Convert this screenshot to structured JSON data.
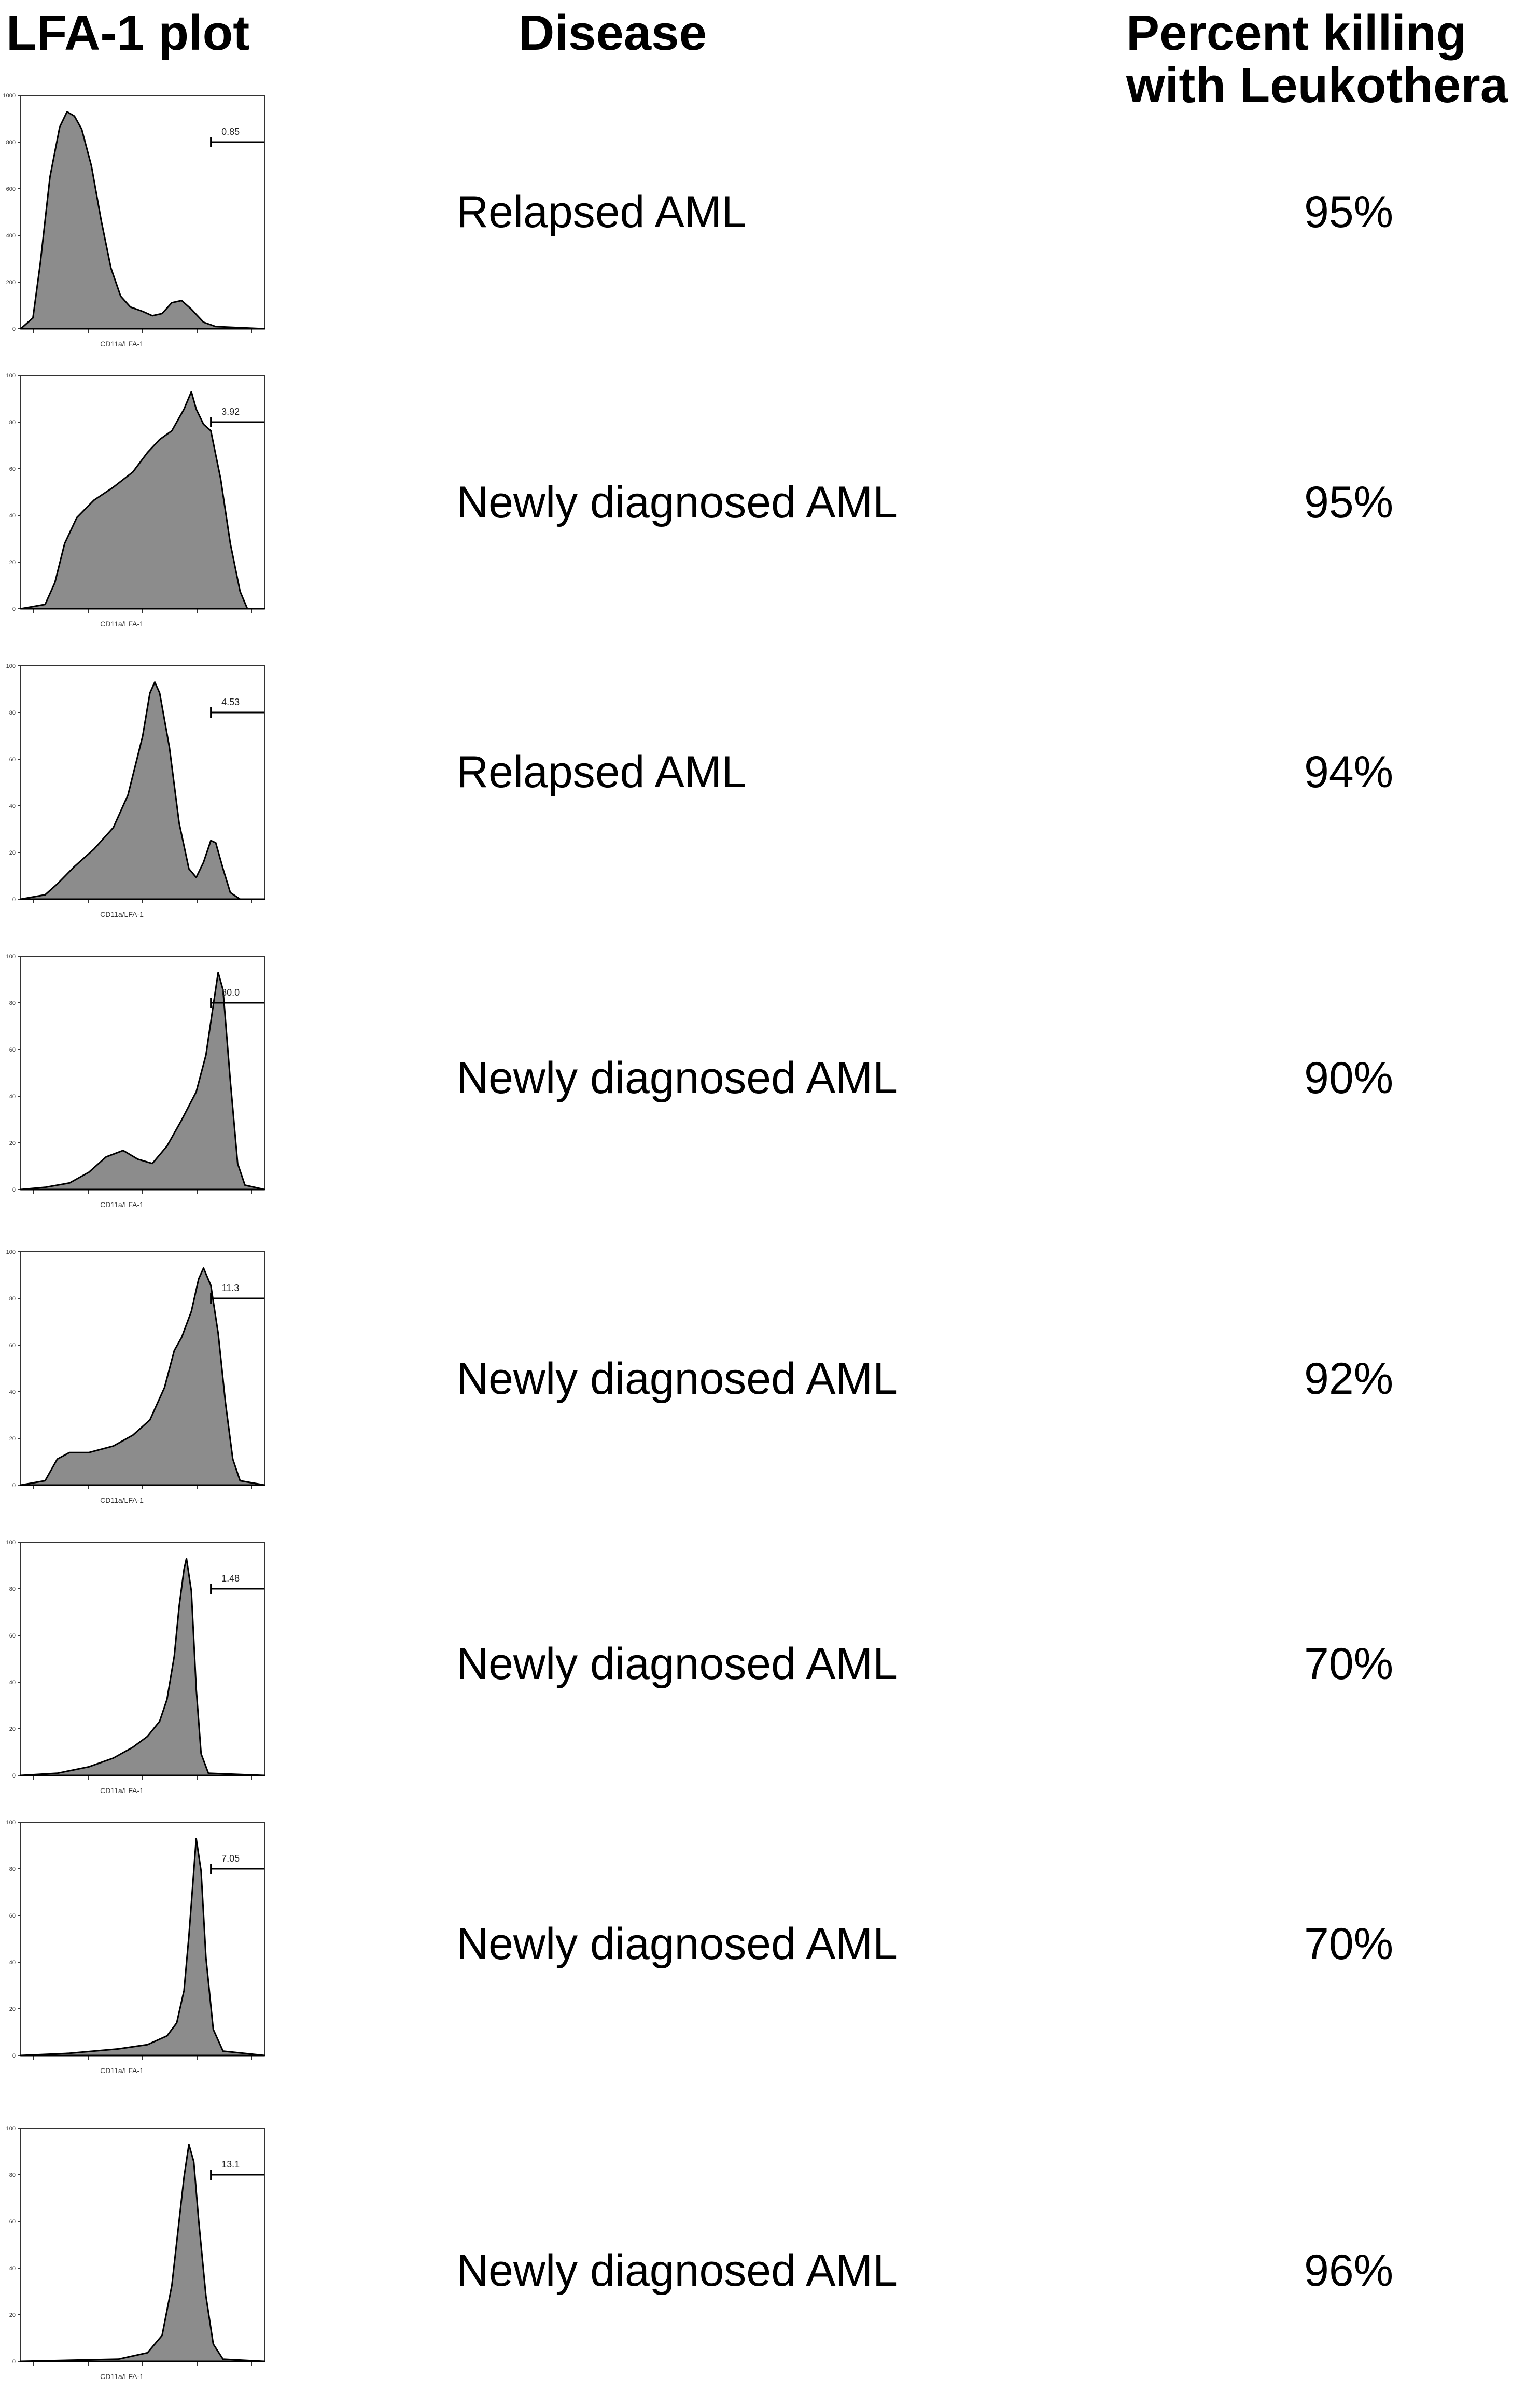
{
  "headers": {
    "plot": "LFA-1 plot",
    "disease": "Disease",
    "kill_line1": "Percent killing",
    "kill_line2": "with  Leukothera"
  },
  "colors": {
    "fill": "#8c8c8c",
    "stroke": "#000000"
  },
  "chart_data": {
    "type": "table",
    "columns": [
      "LFA-1 plot",
      "Disease",
      "Percent killing with Leukothera"
    ],
    "rows": [
      {
        "disease": "Relapsed AML",
        "killing": "95%",
        "gate_value": "0.85",
        "axis_label": "CD11a/LFA-1",
        "y_ticks": [
          "0",
          "200",
          "400",
          "600",
          "800",
          "1000"
        ],
        "histogram": [
          [
            0,
            0
          ],
          [
            0.05,
            0.05
          ],
          [
            0.08,
            0.3
          ],
          [
            0.12,
            0.7
          ],
          [
            0.16,
            0.93
          ],
          [
            0.19,
            1.0
          ],
          [
            0.22,
            0.98
          ],
          [
            0.25,
            0.92
          ],
          [
            0.29,
            0.75
          ],
          [
            0.33,
            0.5
          ],
          [
            0.37,
            0.28
          ],
          [
            0.41,
            0.15
          ],
          [
            0.45,
            0.1
          ],
          [
            0.5,
            0.08
          ],
          [
            0.54,
            0.06
          ],
          [
            0.58,
            0.07
          ],
          [
            0.62,
            0.12
          ],
          [
            0.66,
            0.13
          ],
          [
            0.7,
            0.09
          ],
          [
            0.75,
            0.03
          ],
          [
            0.8,
            0.01
          ],
          [
            1,
            0
          ]
        ]
      },
      {
        "disease": "Newly diagnosed AML",
        "killing": "95%",
        "gate_value": "3.92",
        "axis_label": "CD11a/LFA-1",
        "y_ticks": [
          "0",
          "20",
          "40",
          "60",
          "80",
          "100"
        ],
        "histogram": [
          [
            0,
            0
          ],
          [
            0.1,
            0.02
          ],
          [
            0.14,
            0.12
          ],
          [
            0.18,
            0.3
          ],
          [
            0.23,
            0.42
          ],
          [
            0.3,
            0.5
          ],
          [
            0.38,
            0.56
          ],
          [
            0.46,
            0.63
          ],
          [
            0.52,
            0.72
          ],
          [
            0.57,
            0.78
          ],
          [
            0.62,
            0.82
          ],
          [
            0.67,
            0.92
          ],
          [
            0.7,
            1.0
          ],
          [
            0.72,
            0.92
          ],
          [
            0.75,
            0.85
          ],
          [
            0.78,
            0.82
          ],
          [
            0.82,
            0.6
          ],
          [
            0.86,
            0.3
          ],
          [
            0.9,
            0.08
          ],
          [
            0.93,
            0
          ],
          [
            1,
            0
          ]
        ]
      },
      {
        "disease": "Relapsed AML",
        "killing": "94%",
        "gate_value": "4.53",
        "axis_label": "CD11a/LFA-1",
        "y_ticks": [
          "0",
          "20",
          "40",
          "60",
          "80",
          "100"
        ],
        "histogram": [
          [
            0,
            0
          ],
          [
            0.1,
            0.02
          ],
          [
            0.15,
            0.07
          ],
          [
            0.22,
            0.15
          ],
          [
            0.3,
            0.23
          ],
          [
            0.38,
            0.33
          ],
          [
            0.44,
            0.48
          ],
          [
            0.5,
            0.75
          ],
          [
            0.53,
            0.95
          ],
          [
            0.55,
            1.0
          ],
          [
            0.57,
            0.95
          ],
          [
            0.61,
            0.7
          ],
          [
            0.65,
            0.35
          ],
          [
            0.69,
            0.14
          ],
          [
            0.72,
            0.1
          ],
          [
            0.75,
            0.17
          ],
          [
            0.78,
            0.27
          ],
          [
            0.8,
            0.26
          ],
          [
            0.83,
            0.14
          ],
          [
            0.86,
            0.03
          ],
          [
            0.9,
            0
          ],
          [
            1,
            0
          ]
        ]
      },
      {
        "disease": "Newly diagnosed AML",
        "killing": "90%",
        "gate_value": "80.0",
        "axis_label": "CD11a/LFA-1",
        "y_ticks": [
          "0",
          "20",
          "40",
          "60",
          "80",
          "100"
        ],
        "histogram": [
          [
            0,
            0
          ],
          [
            0.1,
            0.01
          ],
          [
            0.2,
            0.03
          ],
          [
            0.28,
            0.08
          ],
          [
            0.35,
            0.15
          ],
          [
            0.42,
            0.18
          ],
          [
            0.48,
            0.14
          ],
          [
            0.54,
            0.12
          ],
          [
            0.6,
            0.2
          ],
          [
            0.66,
            0.32
          ],
          [
            0.72,
            0.45
          ],
          [
            0.76,
            0.62
          ],
          [
            0.79,
            0.85
          ],
          [
            0.81,
            1.0
          ],
          [
            0.83,
            0.92
          ],
          [
            0.86,
            0.5
          ],
          [
            0.89,
            0.12
          ],
          [
            0.92,
            0.02
          ],
          [
            1,
            0
          ]
        ]
      },
      {
        "disease": "Newly diagnosed AML",
        "killing": "92%",
        "gate_value": "11.3",
        "axis_label": "CD11a/LFA-1",
        "y_ticks": [
          "0",
          "20",
          "40",
          "60",
          "80",
          "100"
        ],
        "histogram": [
          [
            0,
            0
          ],
          [
            0.1,
            0.02
          ],
          [
            0.15,
            0.12
          ],
          [
            0.2,
            0.15
          ],
          [
            0.28,
            0.15
          ],
          [
            0.38,
            0.18
          ],
          [
            0.46,
            0.23
          ],
          [
            0.53,
            0.3
          ],
          [
            0.59,
            0.45
          ],
          [
            0.63,
            0.62
          ],
          [
            0.66,
            0.68
          ],
          [
            0.7,
            0.8
          ],
          [
            0.73,
            0.95
          ],
          [
            0.75,
            1.0
          ],
          [
            0.78,
            0.92
          ],
          [
            0.81,
            0.7
          ],
          [
            0.84,
            0.38
          ],
          [
            0.87,
            0.12
          ],
          [
            0.9,
            0.02
          ],
          [
            1,
            0
          ]
        ]
      },
      {
        "disease": "Newly diagnosed AML",
        "killing": "70%",
        "gate_value": "1.48",
        "axis_label": "CD11a/LFA-1",
        "y_ticks": [
          "0",
          "20",
          "40",
          "60",
          "80",
          "100"
        ],
        "histogram": [
          [
            0,
            0
          ],
          [
            0.15,
            0.01
          ],
          [
            0.28,
            0.04
          ],
          [
            0.38,
            0.08
          ],
          [
            0.46,
            0.13
          ],
          [
            0.52,
            0.18
          ],
          [
            0.57,
            0.25
          ],
          [
            0.6,
            0.35
          ],
          [
            0.63,
            0.55
          ],
          [
            0.65,
            0.78
          ],
          [
            0.67,
            0.95
          ],
          [
            0.68,
            1.0
          ],
          [
            0.7,
            0.85
          ],
          [
            0.72,
            0.4
          ],
          [
            0.74,
            0.1
          ],
          [
            0.77,
            0.01
          ],
          [
            1,
            0
          ]
        ]
      },
      {
        "disease": "Newly diagnosed AML",
        "killing": "70%",
        "gate_value": "7.05",
        "axis_label": "CD11a/LFA-1",
        "y_ticks": [
          "0",
          "20",
          "40",
          "60",
          "80",
          "100"
        ],
        "histogram": [
          [
            0,
            0
          ],
          [
            0.2,
            0.01
          ],
          [
            0.4,
            0.03
          ],
          [
            0.52,
            0.05
          ],
          [
            0.6,
            0.09
          ],
          [
            0.64,
            0.15
          ],
          [
            0.67,
            0.3
          ],
          [
            0.69,
            0.55
          ],
          [
            0.71,
            0.85
          ],
          [
            0.72,
            1.0
          ],
          [
            0.74,
            0.85
          ],
          [
            0.76,
            0.45
          ],
          [
            0.79,
            0.12
          ],
          [
            0.83,
            0.02
          ],
          [
            1,
            0
          ]
        ]
      },
      {
        "disease": "Newly diagnosed AML",
        "killing": "96%",
        "gate_value": "13.1",
        "axis_label": "CD11a/LFA-1",
        "y_ticks": [
          "0",
          "20",
          "40",
          "60",
          "80",
          "100"
        ],
        "histogram": [
          [
            0,
            0
          ],
          [
            0.4,
            0.01
          ],
          [
            0.52,
            0.04
          ],
          [
            0.58,
            0.12
          ],
          [
            0.62,
            0.35
          ],
          [
            0.65,
            0.65
          ],
          [
            0.67,
            0.85
          ],
          [
            0.69,
            1.0
          ],
          [
            0.71,
            0.92
          ],
          [
            0.73,
            0.65
          ],
          [
            0.76,
            0.3
          ],
          [
            0.79,
            0.08
          ],
          [
            0.83,
            0.01
          ],
          [
            1,
            0
          ]
        ]
      }
    ]
  }
}
